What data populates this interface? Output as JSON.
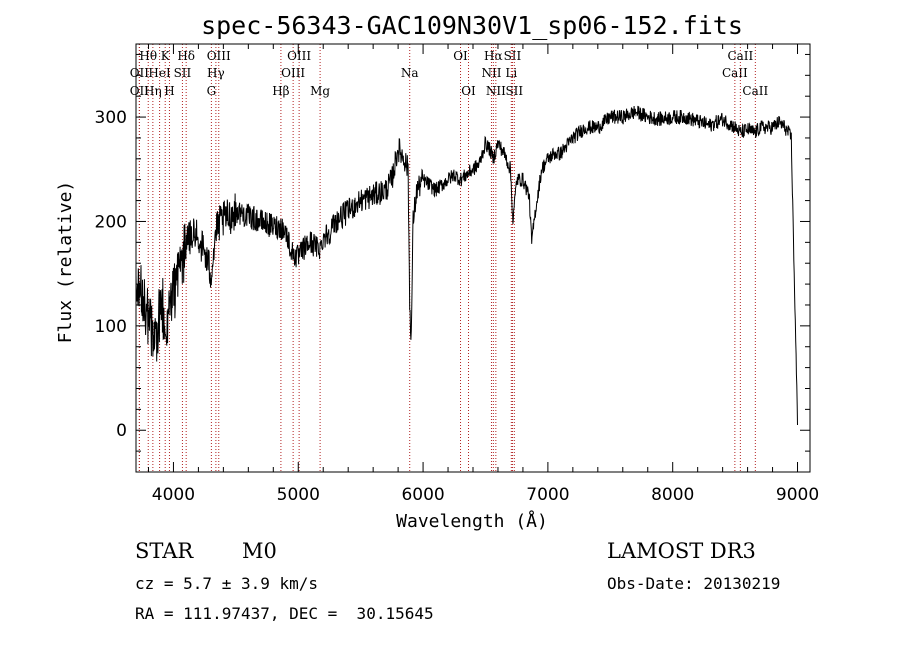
{
  "chart_data": {
    "type": "line",
    "title": "spec-56343-GAC109N30V1_sp06-152.fits",
    "xlabel": "Wavelength (Å)",
    "ylabel": "Flux (relative)",
    "xlim": [
      3700,
      9100
    ],
    "ylim": [
      -40,
      370
    ],
    "xticks": [
      4000,
      5000,
      6000,
      7000,
      8000,
      9000
    ],
    "yticks": [
      0,
      100,
      200,
      300
    ],
    "series": [
      {
        "name": "flux",
        "x": [
          3700,
          3740,
          3780,
          3820,
          3860,
          3900,
          3950,
          4000,
          4050,
          4100,
          4150,
          4200,
          4250,
          4300,
          4340,
          4380,
          4450,
          4500,
          4600,
          4700,
          4800,
          4860,
          4900,
          4950,
          5000,
          5050,
          5100,
          5150,
          5180,
          5200,
          5250,
          5300,
          5400,
          5500,
          5600,
          5700,
          5750,
          5800,
          5850,
          5880,
          5893,
          5906,
          5920,
          5950,
          6000,
          6050,
          6100,
          6150,
          6200,
          6250,
          6300,
          6350,
          6400,
          6450,
          6500,
          6530,
          6563,
          6600,
          6650,
          6700,
          6720,
          6750,
          6800,
          6850,
          6870,
          6900,
          6950,
          7000,
          7050,
          7100,
          7200,
          7300,
          7400,
          7500,
          7600,
          7700,
          7800,
          7900,
          8000,
          8100,
          8200,
          8300,
          8400,
          8500,
          8542,
          8600,
          8662,
          8700,
          8800,
          8850,
          8900,
          8950,
          9000
        ],
        "y": [
          150,
          130,
          110,
          100,
          90,
          120,
          110,
          130,
          160,
          175,
          190,
          185,
          170,
          150,
          190,
          200,
          205,
          210,
          205,
          200,
          195,
          195,
          190,
          170,
          165,
          175,
          180,
          175,
          175,
          185,
          190,
          200,
          210,
          220,
          225,
          230,
          240,
          270,
          260,
          250,
          120,
          90,
          200,
          230,
          240,
          235,
          230,
          235,
          240,
          245,
          240,
          245,
          250,
          255,
          275,
          270,
          260,
          275,
          265,
          250,
          200,
          240,
          240,
          225,
          180,
          210,
          250,
          260,
          265,
          265,
          280,
          290,
          290,
          300,
          300,
          305,
          300,
          298,
          300,
          300,
          296,
          292,
          298,
          290,
          285,
          288,
          285,
          290,
          290,
          295,
          290,
          280,
          5
        ]
      }
    ],
    "lines": [
      {
        "wl": 3727,
        "name": "OII",
        "row": 2
      },
      {
        "wl": 3727,
        "name": "OII",
        "row": 3
      },
      {
        "wl": 3798,
        "name": "Hθ",
        "row": 1
      },
      {
        "wl": 3835,
        "name": "Hη",
        "row": 3
      },
      {
        "wl": 3889,
        "name": "HeI",
        "row": 2
      },
      {
        "wl": 3934,
        "name": "K",
        "row": 1
      },
      {
        "wl": 3968,
        "name": "H",
        "row": 3
      },
      {
        "wl": 4072,
        "name": "SII",
        "row": 2
      },
      {
        "wl": 4102,
        "name": "Hδ",
        "row": 1
      },
      {
        "wl": 4304,
        "name": "G",
        "row": 3
      },
      {
        "wl": 4340,
        "name": "Hγ",
        "row": 2
      },
      {
        "wl": 4363,
        "name": "OIII",
        "row": 1
      },
      {
        "wl": 4861,
        "name": "Hβ",
        "row": 3
      },
      {
        "wl": 4959,
        "name": "OIII",
        "row": 2
      },
      {
        "wl": 5007,
        "name": "OIII",
        "row": 1
      },
      {
        "wl": 5175,
        "name": "Mg",
        "row": 3
      },
      {
        "wl": 5893,
        "name": "Na",
        "row": 2
      },
      {
        "wl": 6300,
        "name": "OI",
        "row": 1
      },
      {
        "wl": 6364,
        "name": "OI",
        "row": 3
      },
      {
        "wl": 6548,
        "name": "NII",
        "row": 2
      },
      {
        "wl": 6563,
        "name": "Hα",
        "row": 1
      },
      {
        "wl": 6583,
        "name": "NII",
        "row": 3
      },
      {
        "wl": 6707,
        "name": "Li",
        "row": 2
      },
      {
        "wl": 6716,
        "name": "SII",
        "row": 1
      },
      {
        "wl": 6731,
        "name": "SII",
        "row": 3
      },
      {
        "wl": 8498,
        "name": "CaII",
        "row": 2
      },
      {
        "wl": 8542,
        "name": "CaII",
        "row": 1
      },
      {
        "wl": 8662,
        "name": "CaII",
        "row": 3
      }
    ]
  },
  "info": {
    "class_label": "STAR",
    "subclass": "M0",
    "survey": "LAMOST DR3",
    "cz": "cz = 5.7 ± 3.9 km/s",
    "obs_date": "Obs-Date: 20130219",
    "coords": "RA = 111.97437, DEC =  30.15645"
  },
  "colors": {
    "line_marker": "#b22222",
    "spectrum": "#000000"
  }
}
